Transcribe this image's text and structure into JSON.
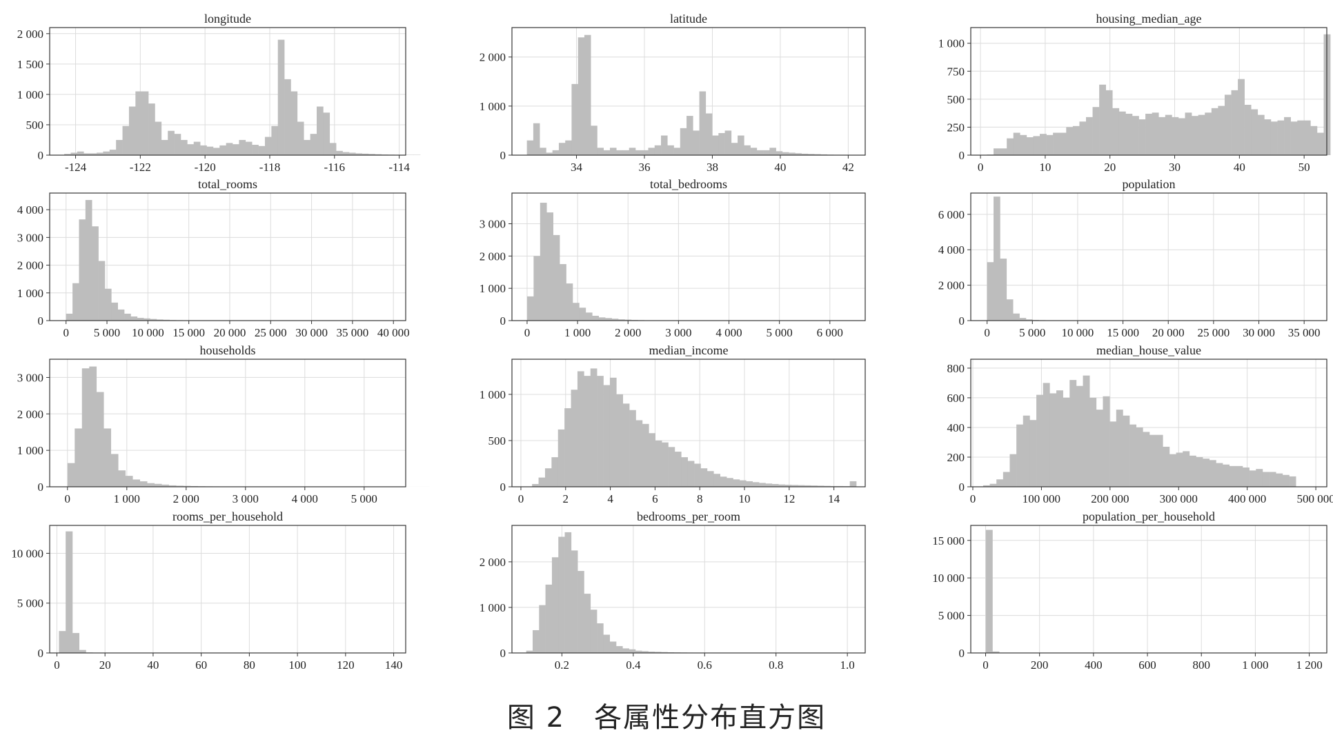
{
  "figure": {
    "caption": "图 2　各属性分布直方图"
  },
  "style": {
    "bar_color": "#bdbdbd",
    "grid_color": "#dcdcdc",
    "axis_color": "#333333",
    "grid": true
  },
  "chart_data": [
    {
      "type": "bar",
      "title": "longitude",
      "xlim": [
        -124.8,
        -113.8
      ],
      "ylim": [
        0,
        2100
      ],
      "xticks": [
        -124,
        -122,
        -120,
        -118,
        -116,
        -114
      ],
      "xtick_labels": [
        "-124",
        "-122",
        "-120",
        "-118",
        "-116",
        "-114"
      ],
      "yticks": [
        0,
        500,
        1000,
        1500,
        2000
      ],
      "ytick_labels": [
        "0",
        "500",
        "1 000",
        "1 500",
        "2 000"
      ],
      "bin_start": -124.35,
      "bin_width": 0.2,
      "values": [
        20,
        40,
        60,
        30,
        30,
        40,
        60,
        90,
        250,
        480,
        800,
        1050,
        1050,
        850,
        550,
        250,
        400,
        350,
        250,
        180,
        220,
        160,
        140,
        120,
        160,
        200,
        180,
        250,
        220,
        170,
        150,
        300,
        480,
        1900,
        1250,
        1050,
        550,
        250,
        350,
        800,
        700,
        200,
        70,
        50,
        40,
        30,
        25,
        20,
        15,
        10,
        8,
        6,
        5,
        5,
        5
      ]
    },
    {
      "type": "bar",
      "title": "latitude",
      "xlim": [
        32.1,
        42.5
      ],
      "ylim": [
        0,
        2600
      ],
      "xticks": [
        34,
        36,
        38,
        40,
        42
      ],
      "xtick_labels": [
        "34",
        "36",
        "38",
        "40",
        "42"
      ],
      "yticks": [
        0,
        1000,
        2000
      ],
      "ytick_labels": [
        "0",
        "1 000",
        "2 000"
      ],
      "bin_start": 32.54,
      "bin_width": 0.188,
      "values": [
        300,
        650,
        150,
        50,
        100,
        250,
        300,
        1450,
        2400,
        2450,
        600,
        150,
        100,
        150,
        100,
        100,
        150,
        100,
        100,
        150,
        200,
        400,
        200,
        150,
        550,
        800,
        500,
        1300,
        850,
        400,
        450,
        500,
        250,
        400,
        200,
        150,
        100,
        100,
        150,
        80,
        60,
        50,
        40,
        30,
        25,
        20,
        15,
        10,
        8,
        5
      ]
    },
    {
      "type": "bar",
      "title": "housing_median_age",
      "xlim": [
        -1.5,
        53.5
      ],
      "ylim": [
        0,
        1140
      ],
      "xticks": [
        0,
        10,
        20,
        30,
        40,
        50
      ],
      "xtick_labels": [
        "0",
        "10",
        "20",
        "30",
        "40",
        "50"
      ],
      "yticks": [
        0,
        250,
        500,
        750,
        1000
      ],
      "ytick_labels": [
        "0",
        "250",
        "500",
        "750",
        "1 000"
      ],
      "bin_start": 1,
      "bin_width": 1.02,
      "values": [
        5,
        60,
        60,
        150,
        200,
        180,
        160,
        170,
        190,
        180,
        200,
        200,
        250,
        260,
        300,
        340,
        430,
        630,
        580,
        420,
        390,
        370,
        350,
        320,
        370,
        380,
        340,
        360,
        340,
        330,
        380,
        350,
        360,
        380,
        420,
        440,
        540,
        580,
        680,
        450,
        410,
        360,
        320,
        300,
        310,
        340,
        300,
        310,
        310,
        260,
        200,
        1080
      ]
    },
    {
      "type": "bar",
      "title": "total_rooms",
      "xlim": [
        -2000,
        41500
      ],
      "ylim": [
        0,
        4600
      ],
      "xticks": [
        0,
        5000,
        10000,
        15000,
        20000,
        25000,
        30000,
        35000,
        40000
      ],
      "xtick_labels": [
        "0",
        "5 000",
        "10 000",
        "15 000",
        "20 000",
        "25 000",
        "30 000",
        "35 000",
        "40 000"
      ],
      "yticks": [
        0,
        1000,
        2000,
        3000,
        4000
      ],
      "ytick_labels": [
        "0",
        "1 000",
        "2 000",
        "3 000",
        "4 000"
      ],
      "bin_start": 0,
      "bin_width": 790,
      "values": [
        250,
        1350,
        3650,
        4350,
        3400,
        2150,
        1150,
        650,
        400,
        250,
        150,
        100,
        80,
        60,
        40,
        30,
        20,
        15,
        10,
        8,
        6,
        5,
        4,
        3,
        3,
        2,
        2,
        2,
        1,
        1,
        1,
        1,
        1,
        1,
        1,
        1,
        1,
        1,
        1,
        1,
        1,
        1,
        1,
        1,
        1,
        1,
        1,
        1,
        1,
        1
      ]
    },
    {
      "type": "bar",
      "title": "total_bedrooms",
      "xlim": [
        -300,
        6700
      ],
      "ylim": [
        0,
        3950
      ],
      "xticks": [
        0,
        1000,
        2000,
        3000,
        4000,
        5000,
        6000
      ],
      "xtick_labels": [
        "0",
        "1 000",
        "2 000",
        "3 000",
        "4 000",
        "5 000",
        "6 000"
      ],
      "yticks": [
        0,
        1000,
        2000,
        3000
      ],
      "ytick_labels": [
        "0",
        "1 000",
        "2 000",
        "3 000"
      ],
      "bin_start": 0,
      "bin_width": 129,
      "values": [
        750,
        2000,
        3650,
        3350,
        2650,
        1750,
        1150,
        550,
        400,
        250,
        150,
        100,
        80,
        60,
        40,
        30,
        20,
        15,
        10,
        8,
        6,
        5,
        4,
        3,
        3,
        2,
        2,
        2,
        1,
        1,
        1,
        1,
        1,
        1,
        1,
        1,
        1,
        1,
        1,
        1,
        1,
        1,
        1,
        1,
        1,
        1,
        1,
        1,
        1,
        1
      ]
    },
    {
      "type": "bar",
      "title": "population",
      "xlim": [
        -1800,
        37500
      ],
      "ylim": [
        0,
        7200
      ],
      "xticks": [
        0,
        5000,
        10000,
        15000,
        20000,
        25000,
        30000,
        35000
      ],
      "xtick_labels": [
        "0",
        "5 000",
        "10 000",
        "15 000",
        "20 000",
        "25 000",
        "30 000",
        "35 000"
      ],
      "yticks": [
        0,
        2000,
        4000,
        6000
      ],
      "ytick_labels": [
        "0",
        "2 000",
        "4 000",
        "6 000"
      ],
      "bin_start": 0,
      "bin_width": 715,
      "values": [
        3300,
        7000,
        3500,
        1200,
        400,
        150,
        70,
        40,
        25,
        15,
        10,
        8,
        6,
        5,
        4,
        3,
        2,
        2,
        1,
        1,
        1,
        1,
        1,
        1,
        1,
        1,
        1,
        1,
        1,
        1,
        1,
        1,
        1,
        1,
        1,
        1,
        1,
        1,
        1,
        1,
        1,
        1,
        1,
        1,
        1,
        1,
        1,
        1,
        1,
        1
      ]
    },
    {
      "type": "bar",
      "title": "households",
      "xlim": [
        -300,
        5700
      ],
      "ylim": [
        0,
        3500
      ],
      "xticks": [
        0,
        1000,
        2000,
        3000,
        4000,
        5000
      ],
      "xtick_labels": [
        "0",
        "1 000",
        "2 000",
        "3 000",
        "4 000",
        "5 000"
      ],
      "yticks": [
        0,
        1000,
        2000,
        3000
      ],
      "ytick_labels": [
        "0",
        "1 000",
        "2 000",
        "3 000"
      ],
      "bin_start": 0,
      "bin_width": 122,
      "values": [
        650,
        1600,
        3250,
        3300,
        2600,
        1600,
        900,
        450,
        300,
        200,
        150,
        100,
        80,
        60,
        40,
        30,
        25,
        20,
        15,
        12,
        10,
        8,
        6,
        5,
        4,
        3,
        3,
        2,
        2,
        2,
        1,
        1,
        1,
        1,
        1,
        1,
        1,
        1,
        1,
        1,
        1,
        1,
        1,
        1,
        1,
        1,
        1,
        1,
        1,
        1
      ]
    },
    {
      "type": "bar",
      "title": "median_income",
      "xlim": [
        -0.4,
        15.4
      ],
      "ylim": [
        0,
        1380
      ],
      "xticks": [
        0,
        2,
        4,
        6,
        8,
        10,
        12,
        14
      ],
      "xtick_labels": [
        "0",
        "2",
        "4",
        "6",
        "8",
        "10",
        "12",
        "14"
      ],
      "yticks": [
        0,
        500,
        1000
      ],
      "ytick_labels": [
        "0",
        "500",
        "1 000"
      ],
      "bin_start": 0.5,
      "bin_width": 0.29,
      "values": [
        30,
        100,
        200,
        320,
        620,
        850,
        1050,
        1250,
        1200,
        1280,
        1200,
        1100,
        1180,
        1000,
        900,
        830,
        720,
        680,
        580,
        500,
        480,
        430,
        380,
        320,
        280,
        250,
        200,
        170,
        140,
        110,
        95,
        80,
        70,
        60,
        50,
        42,
        35,
        30,
        25,
        22,
        20,
        18,
        16,
        14,
        12,
        10,
        8,
        8,
        7,
        60
      ]
    },
    {
      "type": "bar",
      "title": "median_house_value",
      "xlim": [
        -3000,
        516000
      ],
      "ylim": [
        0,
        860
      ],
      "xticks": [
        0,
        100000,
        200000,
        300000,
        400000,
        500000
      ],
      "xtick_labels": [
        "0",
        "100 000",
        "200 000",
        "300 000",
        "400 000",
        "500 000"
      ],
      "yticks": [
        0,
        200,
        400,
        600,
        800
      ],
      "ytick_labels": [
        "0",
        "200",
        "400",
        "600",
        "800"
      ],
      "bin_start": 15000,
      "bin_width": 9700,
      "values": [
        10,
        20,
        50,
        100,
        220,
        420,
        480,
        450,
        620,
        700,
        630,
        650,
        600,
        720,
        680,
        750,
        600,
        520,
        610,
        440,
        520,
        480,
        420,
        400,
        370,
        350,
        350,
        270,
        220,
        230,
        240,
        210,
        200,
        190,
        180,
        160,
        150,
        140,
        140,
        130,
        110,
        120,
        100,
        100,
        90,
        80,
        70,
        1
      ]
    },
    {
      "type": "bar",
      "title": "rooms_per_household",
      "xlim": [
        -3,
        145
      ],
      "ylim": [
        0,
        12800
      ],
      "xticks": [
        0,
        20,
        40,
        60,
        80,
        100,
        120,
        140
      ],
      "xtick_labels": [
        "0",
        "20",
        "40",
        "60",
        "80",
        "100",
        "120",
        "140"
      ],
      "yticks": [
        0,
        5000,
        10000
      ],
      "ytick_labels": [
        "0",
        "5 000",
        "10 000"
      ],
      "bin_start": 0.85,
      "bin_width": 2.8,
      "values": [
        2200,
        12200,
        2000,
        300,
        50,
        10,
        5,
        3,
        2,
        1,
        1,
        1,
        1,
        1,
        1,
        1,
        1,
        1,
        1,
        1,
        1,
        1,
        1,
        1,
        1,
        1,
        1,
        1,
        1,
        1,
        1,
        1,
        1,
        1,
        1,
        1,
        1,
        1,
        1,
        1,
        1,
        1,
        1,
        1,
        1,
        1,
        1,
        1,
        1,
        1
      ]
    },
    {
      "type": "bar",
      "title": "bedrooms_per_room",
      "xlim": [
        0.06,
        1.05
      ],
      "ylim": [
        0,
        2800
      ],
      "xticks": [
        0.2,
        0.4,
        0.6,
        0.8,
        1.0
      ],
      "xtick_labels": [
        "0.2",
        "0.4",
        "0.6",
        "0.8",
        "1.0"
      ],
      "yticks": [
        0,
        1000,
        2000
      ],
      "ytick_labels": [
        "0",
        "1 000",
        "2 000"
      ],
      "bin_start": 0.1,
      "bin_width": 0.018,
      "values": [
        50,
        500,
        1050,
        1500,
        2100,
        2550,
        2650,
        2250,
        1800,
        1300,
        950,
        650,
        400,
        250,
        150,
        100,
        80,
        50,
        40,
        30,
        25,
        20,
        15,
        12,
        10,
        8,
        6,
        5,
        4,
        3,
        2,
        2,
        2,
        1,
        1,
        1,
        1,
        1,
        1,
        1,
        1,
        1,
        1,
        1,
        1,
        1,
        1,
        1,
        1,
        1
      ]
    },
    {
      "type": "bar",
      "title": "population_per_household",
      "xlim": [
        -55,
        1265
      ],
      "ylim": [
        0,
        17000
      ],
      "xticks": [
        0,
        200,
        400,
        600,
        800,
        1000,
        1200
      ],
      "xtick_labels": [
        "0",
        "200",
        "400",
        "600",
        "800",
        "1 000",
        "1 200"
      ],
      "yticks": [
        0,
        5000,
        10000,
        15000
      ],
      "ytick_labels": [
        "0",
        "5 000",
        "10 000",
        "15 000"
      ],
      "bin_start": 0.7,
      "bin_width": 24.8,
      "values": [
        16400,
        200,
        30,
        5,
        2,
        1,
        1,
        1,
        1,
        1,
        1,
        1,
        1,
        1,
        1,
        1,
        1,
        1,
        1,
        1,
        1,
        1,
        1,
        1,
        1,
        1,
        1,
        1,
        1,
        1,
        1,
        1,
        1,
        1,
        1,
        1,
        1,
        1,
        1,
        1,
        1,
        1,
        1,
        1,
        1,
        1,
        1,
        1,
        1,
        1
      ]
    }
  ]
}
